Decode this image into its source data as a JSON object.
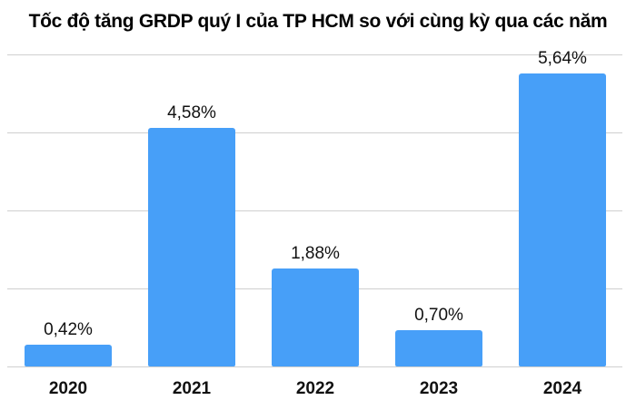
{
  "chart_data": {
    "type": "bar",
    "title": "Tốc độ tăng GRDP quý I của TP HCM so với cùng kỳ qua các năm",
    "categories": [
      "2020",
      "2021",
      "2022",
      "2023",
      "2024"
    ],
    "values": [
      0.42,
      4.58,
      1.88,
      0.7,
      5.64
    ],
    "value_labels": [
      "0,42%",
      "4,58%",
      "1,88%",
      "0,70%",
      "5,64%"
    ],
    "xlabel": "",
    "ylabel": "",
    "ylim": [
      0,
      6
    ],
    "grid": true,
    "legend": "none",
    "bar_color": "#479ff8"
  }
}
